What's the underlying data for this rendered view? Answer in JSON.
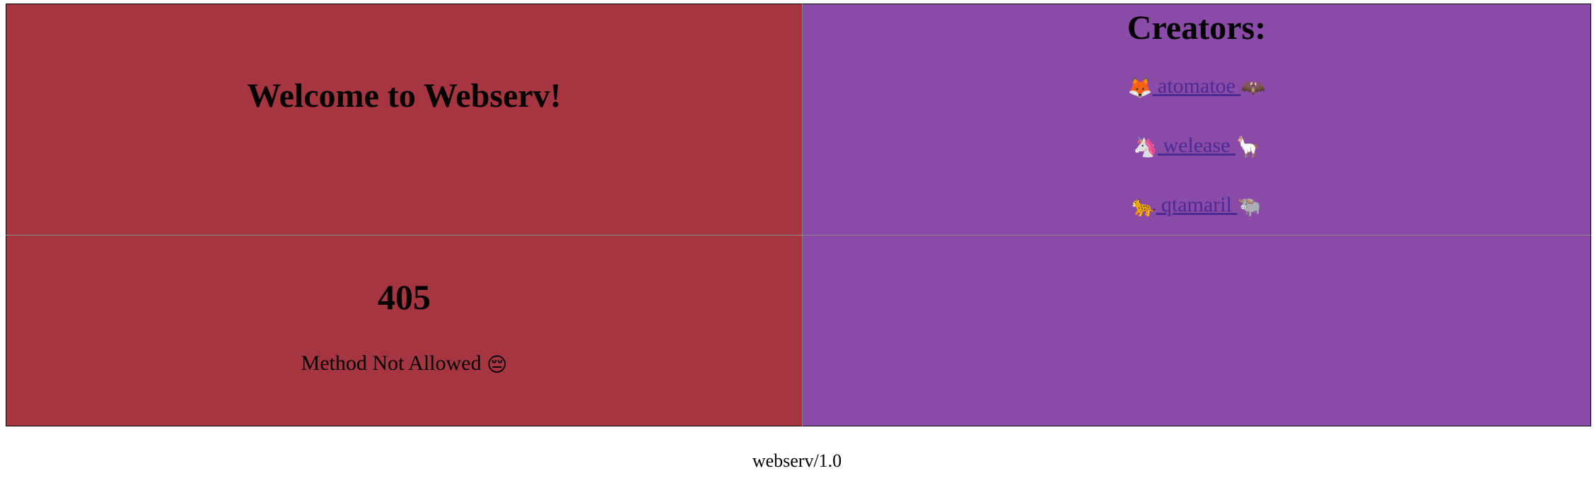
{
  "welcome": {
    "title": "Welcome to Webserv!"
  },
  "creators": {
    "title": "Creators:",
    "people": [
      {
        "left_emoji": "🦊",
        "name": " atomatoe ",
        "right_emoji": "🦇"
      },
      {
        "left_emoji": "🦄",
        "name": " welease ",
        "right_emoji": "🦙"
      },
      {
        "left_emoji": "🐆",
        "name": " qtamaril ",
        "right_emoji": "🐃"
      }
    ]
  },
  "error": {
    "code": "405",
    "message": "Method Not Allowed",
    "emoji": "😔"
  },
  "footer": {
    "server": "webserv/1.0"
  },
  "colors": {
    "left_panel": "#a53540",
    "right_panel": "#8a4aa8",
    "link": "#4b2a92"
  }
}
